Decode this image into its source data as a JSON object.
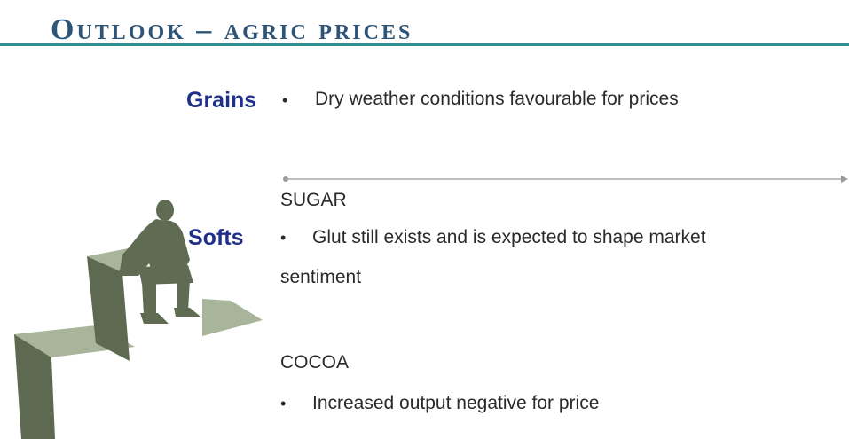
{
  "slide": {
    "title": "Outlook – agric prices",
    "colors": {
      "title": "#2e5578",
      "rule": "#2f8f8f",
      "label": "#1f2f8a",
      "text": "#2a2a2a",
      "figure": "#5f6b52",
      "steps": "#a9b59a"
    }
  },
  "grains": {
    "label": "Grains",
    "bullet": "•",
    "text": "Dry weather conditions favourable for prices"
  },
  "softs": {
    "label": "Softs",
    "sugar": {
      "heading": "SUGAR",
      "bullet": "•",
      "text_line1": "Glut still exists and is expected to shape market",
      "text_line2": "sentiment"
    },
    "cocoa": {
      "heading": "COCOA",
      "bullet": "•",
      "text": "Increased output negative for price"
    }
  },
  "illustration": {
    "icon": "thinking-man-on-steps-icon"
  }
}
